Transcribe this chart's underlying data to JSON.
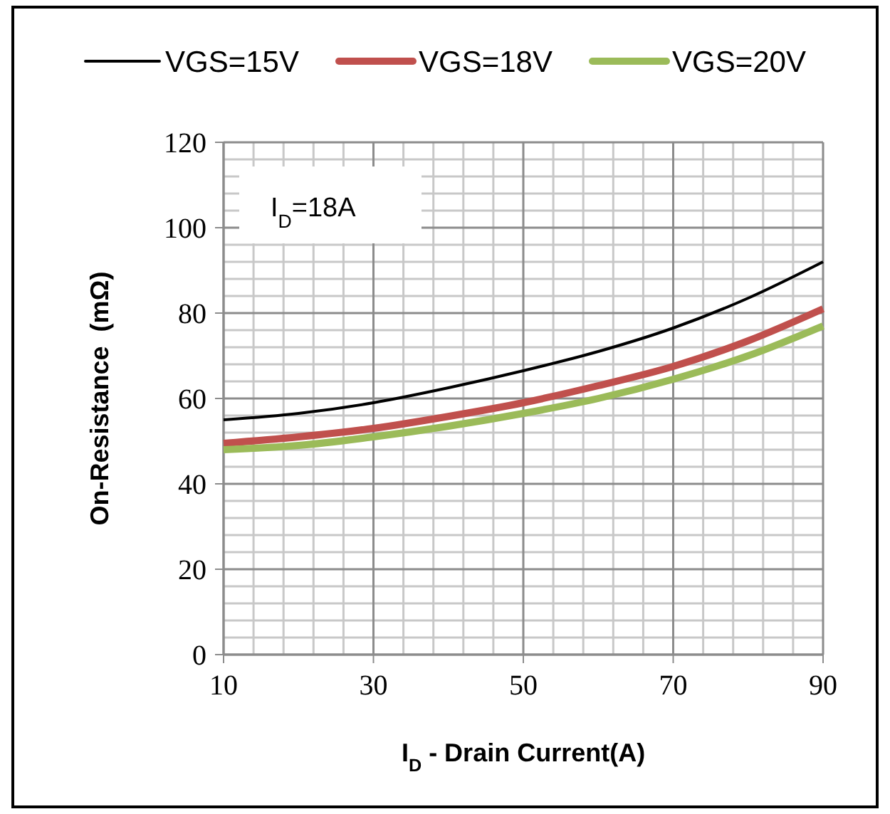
{
  "chart_data": {
    "type": "line",
    "xlabel": "I$_{D}$ - Drain Current(A)",
    "ylabel": "On-Resistance  (mΩ)",
    "annotations": [
      "I$_{D}$=18A"
    ],
    "x": [
      10,
      20,
      30,
      40,
      50,
      60,
      70,
      80,
      90
    ],
    "xlim": [
      10,
      90
    ],
    "xticks": [
      10,
      30,
      50,
      70,
      90
    ],
    "ylim": [
      0,
      120
    ],
    "yticks": [
      0,
      20,
      40,
      60,
      80,
      100,
      120
    ],
    "grid": true,
    "legend": "top",
    "marker": "none",
    "line_style": "solid",
    "series": [
      {
        "name": "VGS=15V",
        "color": "#000000",
        "values": [
          55,
          56.5,
          59,
          62.5,
          66.5,
          71,
          76.5,
          83.5,
          92
        ]
      },
      {
        "name": "VGS=18V",
        "color": "#c0504d",
        "values": [
          49.5,
          51,
          53,
          55.8,
          59,
          63,
          67.5,
          73.5,
          81
        ]
      },
      {
        "name": "VGS=20V",
        "color": "#9bbb59",
        "values": [
          48,
          49,
          51,
          53.5,
          56.5,
          60,
          64.5,
          70,
          77
        ]
      }
    ]
  }
}
